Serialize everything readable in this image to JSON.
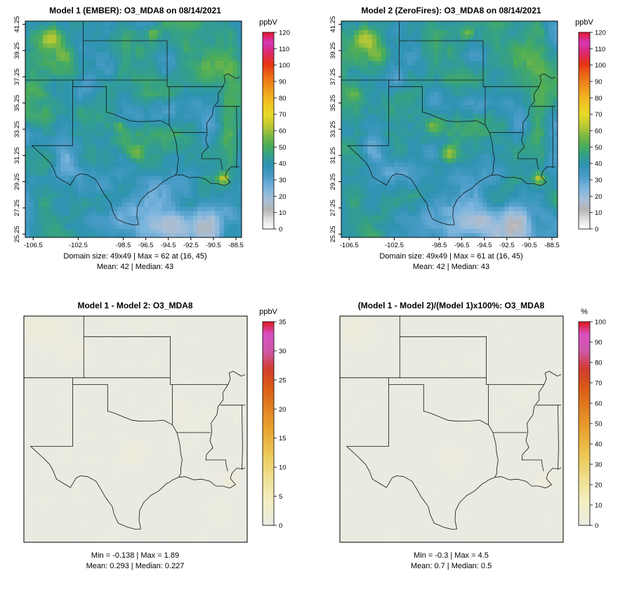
{
  "axes": {
    "x_tick_labels": [
      "-106.5",
      "-102.5",
      "-98.5",
      "-96.5",
      "-94.5",
      "-92.5",
      "-90.5",
      "-88.5"
    ],
    "y_tick_labels": [
      "25.25",
      "27.25",
      "29.25",
      "31.25",
      "33.25",
      "35.25",
      "37.25",
      "39.25",
      "41.25"
    ]
  },
  "panels": [
    {
      "title": "Model 1 (EMBER): O3_MDA8 on 08/14/2021",
      "stats_line1": "Domain size: 49x49 | Max = 62 at (16, 45)",
      "stats_line2": "Mean: 42 |  Median: 43",
      "show_axes": true,
      "field": "conc",
      "seed": 0,
      "colorbar": {
        "unit": "ppbV",
        "min": 0,
        "max": 120,
        "ticks": [
          0,
          10,
          20,
          30,
          40,
          50,
          60,
          70,
          80,
          90,
          100,
          110,
          120
        ],
        "palette": [
          [
            0,
            "#ffffff"
          ],
          [
            6,
            "#e0e0e0"
          ],
          [
            12,
            "#b4b4b4"
          ],
          [
            18,
            "#a8bfd8"
          ],
          [
            25,
            "#7cb5dd"
          ],
          [
            32,
            "#4c9dc9"
          ],
          [
            39,
            "#2f93b2"
          ],
          [
            45,
            "#339f8b"
          ],
          [
            51,
            "#4bad5a"
          ],
          [
            57,
            "#7db843"
          ],
          [
            63,
            "#bcc934"
          ],
          [
            70,
            "#e8da28"
          ],
          [
            78,
            "#f2bf24"
          ],
          [
            86,
            "#f0971d"
          ],
          [
            94,
            "#ec6815"
          ],
          [
            101,
            "#e63114"
          ],
          [
            108,
            "#dc2a72"
          ],
          [
            114,
            "#d437b4"
          ],
          [
            120,
            "#e6182e"
          ]
        ]
      }
    },
    {
      "title": "Model 2 (ZeroFires): O3_MDA8 on 08/14/2021",
      "stats_line1": "Domain size: 49x49 | Max = 61 at (16, 45)",
      "stats_line2": "Mean: 42 |  Median: 43",
      "show_axes": true,
      "field": "conc",
      "seed": 0.4,
      "colorbar": {
        "unit": "ppbV",
        "min": 0,
        "max": 120,
        "ticks": [
          0,
          10,
          20,
          30,
          40,
          50,
          60,
          70,
          80,
          90,
          100,
          110,
          120
        ],
        "palette": [
          [
            0,
            "#ffffff"
          ],
          [
            6,
            "#e0e0e0"
          ],
          [
            12,
            "#b4b4b4"
          ],
          [
            18,
            "#a8bfd8"
          ],
          [
            25,
            "#7cb5dd"
          ],
          [
            32,
            "#4c9dc9"
          ],
          [
            39,
            "#2f93b2"
          ],
          [
            45,
            "#339f8b"
          ],
          [
            51,
            "#4bad5a"
          ],
          [
            57,
            "#7db843"
          ],
          [
            63,
            "#bcc934"
          ],
          [
            70,
            "#e8da28"
          ],
          [
            78,
            "#f2bf24"
          ],
          [
            86,
            "#f0971d"
          ],
          [
            94,
            "#ec6815"
          ],
          [
            101,
            "#e63114"
          ],
          [
            108,
            "#dc2a72"
          ],
          [
            114,
            "#d437b4"
          ],
          [
            120,
            "#e6182e"
          ]
        ]
      }
    },
    {
      "title": "Model 1 - Model 2: O3_MDA8",
      "stats_line1": "Min = -0.138 | Max = 1.89",
      "stats_line2": "Mean: 0.293 |  Median: 0.227",
      "show_axes": false,
      "field": "diff",
      "seed": 0,
      "colorbar": {
        "unit": "ppbV",
        "min": 0,
        "max": 35,
        "ticks": [
          0,
          5,
          10,
          15,
          20,
          25,
          30,
          35
        ],
        "palette": [
          [
            0,
            "#eaeae3"
          ],
          [
            4,
            "#f2efc5"
          ],
          [
            8,
            "#efe194"
          ],
          [
            12,
            "#edcb5c"
          ],
          [
            16,
            "#e9a934"
          ],
          [
            20,
            "#e28421"
          ],
          [
            24,
            "#da5a17"
          ],
          [
            27,
            "#d13b31"
          ],
          [
            30,
            "#cd59a9"
          ],
          [
            33,
            "#d84fc0"
          ],
          [
            35,
            "#e0161f"
          ]
        ]
      }
    },
    {
      "title": "(Model 1 - Model 2)/(Model 1)x100%: O3_MDA8",
      "stats_line1": "Min = -0.3 | Max = 4.5",
      "stats_line2": "Mean: 0.7 |  Median: 0.5",
      "show_axes": false,
      "field": "pct",
      "seed": 0,
      "colorbar": {
        "unit": "%",
        "min": 0,
        "max": 100,
        "ticks": [
          0,
          10,
          20,
          30,
          40,
          50,
          60,
          70,
          80,
          90,
          100
        ],
        "palette": [
          [
            0,
            "#eaeae3"
          ],
          [
            11,
            "#f2efc5"
          ],
          [
            22,
            "#efe194"
          ],
          [
            33,
            "#edcb5c"
          ],
          [
            45,
            "#e9a934"
          ],
          [
            56,
            "#e28421"
          ],
          [
            68,
            "#da5a17"
          ],
          [
            77,
            "#d13b31"
          ],
          [
            86,
            "#cd59a9"
          ],
          [
            94,
            "#d84fc0"
          ],
          [
            100,
            "#e0161f"
          ]
        ]
      }
    }
  ],
  "chart_data": [
    {
      "type": "heatmap",
      "title": "Model 1 (EMBER): O3_MDA8 on 08/14/2021",
      "variable": "O3_MDA8",
      "date": "08/14/2021",
      "units": "ppbV",
      "domain_size": "49x49",
      "grid": [
        49,
        49
      ],
      "max": 62,
      "max_cell": [
        16,
        45
      ],
      "mean": 42,
      "median": 43,
      "lon_ticks": [
        -106.5,
        -102.5,
        -98.5,
        -96.5,
        -94.5,
        -92.5,
        -90.5,
        -88.5
      ],
      "lat_ticks": [
        25.25,
        27.25,
        29.25,
        31.25,
        33.25,
        35.25,
        37.25,
        39.25,
        41.25
      ],
      "colorbar": {
        "min": 0,
        "max": 120,
        "tick_step": 10,
        "units": "ppbV"
      },
      "legend_position": "right",
      "description": "Gridded ozone MDA8 concentration map over south-central US; mostly 30-50 ppbV blue/teal with green-yellow maxima near 60 ppbV"
    },
    {
      "type": "heatmap",
      "title": "Model 2 (ZeroFires): O3_MDA8 on 08/14/2021",
      "variable": "O3_MDA8",
      "date": "08/14/2021",
      "units": "ppbV",
      "domain_size": "49x49",
      "grid": [
        49,
        49
      ],
      "max": 61,
      "max_cell": [
        16,
        45
      ],
      "mean": 42,
      "median": 43,
      "lon_ticks": [
        -106.5,
        -102.5,
        -98.5,
        -96.5,
        -94.5,
        -92.5,
        -90.5,
        -88.5
      ],
      "lat_ticks": [
        25.25,
        27.25,
        29.25,
        31.25,
        33.25,
        35.25,
        37.25,
        39.25,
        41.25
      ],
      "colorbar": {
        "min": 0,
        "max": 120,
        "tick_step": 10,
        "units": "ppbV"
      },
      "legend_position": "right",
      "description": "Same field as Model 1 with fires zeroed; visually nearly identical"
    },
    {
      "type": "heatmap",
      "title": "Model 1 - Model 2: O3_MDA8",
      "units": "ppbV",
      "min": -0.138,
      "max": 1.89,
      "mean": 0.293,
      "median": 0.227,
      "colorbar": {
        "min": 0,
        "max": 35,
        "tick_step": 5,
        "units": "ppbV"
      },
      "legend_position": "right",
      "description": "Difference map; values near zero so map is nearly uniform light gray with faint pale-yellow patches"
    },
    {
      "type": "heatmap",
      "title": "(Model 1 - Model 2)/(Model 1)x100%: O3_MDA8",
      "units": "%",
      "min": -0.3,
      "max": 4.5,
      "mean": 0.7,
      "median": 0.5,
      "colorbar": {
        "min": 0,
        "max": 100,
        "tick_step": 10,
        "units": "%"
      },
      "legend_position": "right",
      "description": "Percent difference map; values near zero so map is nearly uniform light gray"
    }
  ]
}
